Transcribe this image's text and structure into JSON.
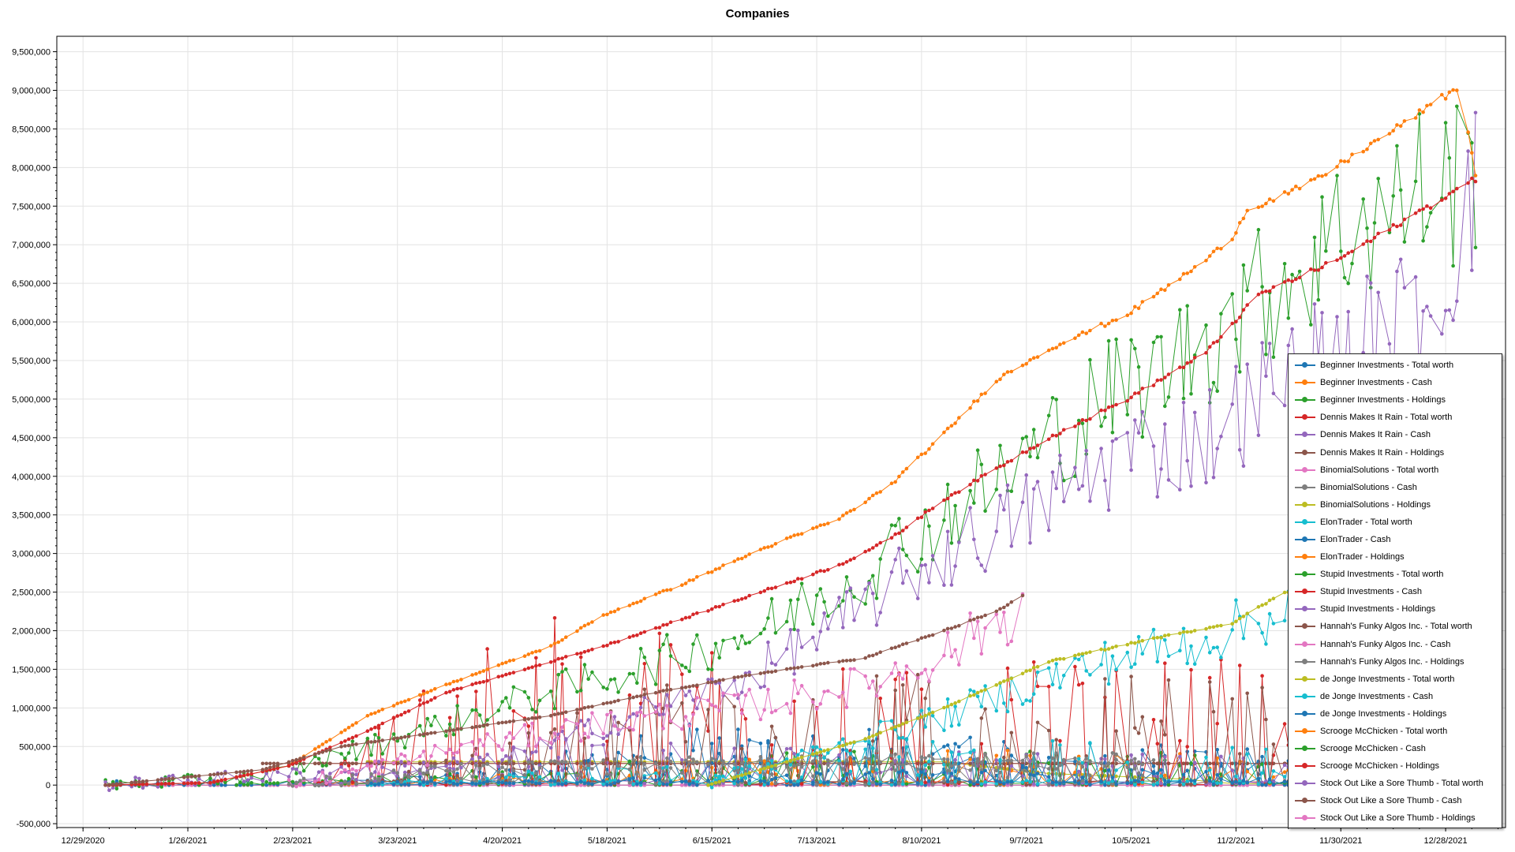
{
  "chart_data": {
    "type": "line",
    "title": "Companies",
    "xlabel": "",
    "ylabel": "",
    "x_ticks": [
      "12/29/2020",
      "1/26/2021",
      "2/23/2021",
      "3/23/2021",
      "4/20/2021",
      "5/18/2021",
      "6/15/2021",
      "7/13/2021",
      "8/10/2021",
      "9/7/2021",
      "10/5/2021",
      "11/2/2021",
      "11/30/2021",
      "12/28/2021"
    ],
    "y_ticks": [
      "-500,000",
      "0",
      "500,000",
      "1,000,000",
      "1,500,000",
      "2,000,000",
      "2,500,000",
      "3,000,000",
      "3,500,000",
      "4,000,000",
      "4,500,000",
      "5,000,000",
      "5,500,000",
      "6,000,000",
      "6,500,000",
      "7,000,000",
      "7,500,000",
      "8,000,000",
      "8,500,000",
      "9,000,000",
      "9,500,000"
    ],
    "x_range": [
      "2020-12-22",
      "2022-01-13"
    ],
    "ylim": [
      -550000,
      9700000
    ],
    "grid": true,
    "legend_position": "bottom-right",
    "series": [
      {
        "name": "Beginner Investments - Total worth",
        "color": "#1f77b4",
        "kind": "trade",
        "points": [
          [
            "2021-01-04",
            0
          ],
          [
            "2021-02-15",
            0
          ],
          [
            "2021-04-12",
            100000
          ],
          [
            "2021-06-07",
            500000
          ],
          [
            "2021-07-26",
            400000
          ],
          [
            "2021-09-06",
            350000
          ],
          [
            "2021-10-25",
            300000
          ],
          [
            "2021-12-20",
            300000
          ],
          [
            "2022-01-03",
            2450000
          ]
        ]
      },
      {
        "name": "Beginner Investments - Cash",
        "color": "#ff7f0e",
        "kind": "trend",
        "points": [
          [
            "2021-01-04",
            0
          ],
          [
            "2021-02-01",
            30000
          ],
          [
            "2021-02-22",
            250000
          ],
          [
            "2021-03-15",
            900000
          ],
          [
            "2021-04-05",
            1300000
          ],
          [
            "2021-04-19",
            1550000
          ],
          [
            "2021-05-03",
            1800000
          ],
          [
            "2021-05-17",
            2200000
          ],
          [
            "2021-06-07",
            2600000
          ],
          [
            "2021-06-28",
            3050000
          ],
          [
            "2021-07-19",
            3450000
          ],
          [
            "2021-08-02",
            3900000
          ],
          [
            "2021-08-16",
            4550000
          ],
          [
            "2021-08-30",
            5250000
          ],
          [
            "2021-09-13",
            5650000
          ],
          [
            "2021-10-04",
            6100000
          ],
          [
            "2021-10-25",
            6800000
          ],
          [
            "2021-11-01",
            7100000
          ],
          [
            "2021-11-05",
            7450000
          ],
          [
            "2021-11-22",
            7800000
          ],
          [
            "2021-12-13",
            8450000
          ],
          [
            "2021-12-27",
            8900000
          ],
          [
            "2022-01-01",
            9050000
          ],
          [
            "2022-01-05",
            7900000
          ]
        ]
      },
      {
        "name": "Beginner Investments - Holdings",
        "color": "#2ca02c",
        "kind": "volatile",
        "points": [
          [
            "2021-01-04",
            0
          ],
          [
            "2021-02-15",
            100000
          ],
          [
            "2021-03-15",
            500000
          ],
          [
            "2021-04-19",
            1000000
          ],
          [
            "2021-05-24",
            1500000
          ],
          [
            "2021-06-28",
            2000000
          ],
          [
            "2021-07-26",
            2800000
          ],
          [
            "2021-08-16",
            3500000
          ],
          [
            "2021-09-06",
            4200000
          ],
          [
            "2021-09-27",
            5000000
          ],
          [
            "2021-10-18",
            5500000
          ],
          [
            "2021-11-08",
            6300000
          ],
          [
            "2021-11-29",
            7100000
          ],
          [
            "2021-12-20",
            7700000
          ],
          [
            "2022-01-05",
            7900000
          ]
        ]
      },
      {
        "name": "Dennis Makes It Rain - Total worth",
        "color": "#d62728",
        "kind": "trend",
        "points": [
          [
            "2021-01-04",
            0
          ],
          [
            "2021-02-01",
            30000
          ],
          [
            "2021-02-22",
            250000
          ],
          [
            "2021-03-15",
            700000
          ],
          [
            "2021-04-05",
            1200000
          ],
          [
            "2021-04-26",
            1500000
          ],
          [
            "2021-05-17",
            1800000
          ],
          [
            "2021-06-07",
            2150000
          ],
          [
            "2021-06-28",
            2500000
          ],
          [
            "2021-07-19",
            2850000
          ],
          [
            "2021-08-02",
            3200000
          ],
          [
            "2021-08-16",
            3700000
          ],
          [
            "2021-08-30",
            4100000
          ],
          [
            "2021-09-13",
            4500000
          ],
          [
            "2021-10-04",
            5000000
          ],
          [
            "2021-10-25",
            5600000
          ],
          [
            "2021-11-08",
            6350000
          ],
          [
            "2021-11-29",
            6800000
          ],
          [
            "2021-12-20",
            7400000
          ],
          [
            "2022-01-05",
            7850000
          ]
        ]
      },
      {
        "name": "Dennis Makes It Rain - Cash",
        "color": "#9467bd",
        "kind": "volatile",
        "points": [
          [
            "2021-01-04",
            0
          ],
          [
            "2021-04-19",
            300000
          ],
          [
            "2021-05-24",
            900000
          ],
          [
            "2021-06-21",
            1300000
          ],
          [
            "2021-07-19",
            2100000
          ],
          [
            "2021-08-09",
            2800000
          ],
          [
            "2021-09-06",
            3500000
          ],
          [
            "2021-10-04",
            4300000
          ],
          [
            "2021-10-25",
            4500000
          ],
          [
            "2021-11-15",
            5300000
          ],
          [
            "2021-12-13",
            5900000
          ],
          [
            "2021-12-27",
            6400000
          ],
          [
            "2022-01-05",
            7850000
          ]
        ]
      },
      {
        "name": "Dennis Makes It Rain - Holdings",
        "color": "#8c564b",
        "kind": "trend",
        "points": [
          [
            "2021-01-04",
            0
          ],
          [
            "2021-02-15",
            200000
          ],
          [
            "2021-03-08",
            500000
          ],
          [
            "2021-04-05",
            700000
          ],
          [
            "2021-05-03",
            900000
          ],
          [
            "2021-05-31",
            1200000
          ],
          [
            "2021-06-28",
            1450000
          ],
          [
            "2021-07-26",
            1650000
          ],
          [
            "2021-08-16",
            2000000
          ],
          [
            "2021-08-30",
            2250000
          ],
          [
            "2021-09-06",
            2450000
          ]
        ]
      },
      {
        "name": "BinomialSolutions - Total worth",
        "color": "#e377c2",
        "kind": "volatile",
        "points": [
          [
            "2021-02-22",
            0
          ],
          [
            "2021-04-12",
            500000
          ],
          [
            "2021-05-17",
            800000
          ],
          [
            "2021-06-21",
            1000000
          ],
          [
            "2021-07-26",
            1300000
          ],
          [
            "2021-08-16",
            1700000
          ],
          [
            "2021-09-06",
            2300000
          ]
        ]
      },
      {
        "name": "BinomialSolutions - Cash",
        "color": "#7f7f7f",
        "kind": "volatile",
        "points": [
          [
            "2021-02-22",
            0
          ],
          [
            "2021-04-12",
            200000
          ],
          [
            "2021-07-19",
            300000
          ],
          [
            "2021-10-11",
            300000
          ]
        ]
      },
      {
        "name": "BinomialSolutions - Holdings",
        "color": "#bcbd22",
        "kind": "trend",
        "points": [
          [
            "2021-06-14",
            0
          ],
          [
            "2021-07-26",
            600000
          ],
          [
            "2021-08-16",
            1000000
          ],
          [
            "2021-09-13",
            1600000
          ],
          [
            "2021-10-11",
            1900000
          ],
          [
            "2021-11-01",
            2100000
          ],
          [
            "2021-11-15",
            2500000
          ],
          [
            "2021-12-13",
            2600000
          ]
        ]
      },
      {
        "name": "ElonTrader - Total worth",
        "color": "#17becf",
        "kind": "volatile",
        "points": [
          [
            "2021-06-14",
            0
          ],
          [
            "2021-08-16",
            900000
          ],
          [
            "2021-09-20",
            1500000
          ],
          [
            "2021-10-25",
            1900000
          ],
          [
            "2021-11-22",
            2400000
          ],
          [
            "2021-12-06",
            2500000
          ]
        ]
      },
      {
        "name": "ElonTrader - Cash",
        "color": "#1f77b4",
        "kind": "trade",
        "points": [
          [
            "2021-03-01",
            0
          ],
          [
            "2021-05-10",
            200000
          ],
          [
            "2021-07-12",
            500000
          ],
          [
            "2021-09-06",
            400000
          ],
          [
            "2021-11-01",
            300000
          ],
          [
            "2021-12-27",
            200000
          ]
        ]
      },
      {
        "name": "ElonTrader - Holdings",
        "color": "#ff7f0e",
        "kind": "trade",
        "points": [
          [
            "2021-03-01",
            0
          ],
          [
            "2021-06-01",
            200000
          ],
          [
            "2021-09-01",
            300000
          ],
          [
            "2021-12-20",
            200000
          ]
        ]
      },
      {
        "name": "Stupid Investments - Total worth",
        "color": "#2ca02c",
        "kind": "trade",
        "points": [
          [
            "2021-02-08",
            0
          ],
          [
            "2021-05-10",
            200000
          ],
          [
            "2021-08-09",
            300000
          ],
          [
            "2021-12-20",
            250000
          ]
        ]
      },
      {
        "name": "Stupid Investments - Cash",
        "color": "#d62728",
        "kind": "trade",
        "points": [
          [
            "2021-03-01",
            0
          ],
          [
            "2021-04-19",
            1500000
          ],
          [
            "2021-06-14",
            1200000
          ],
          [
            "2021-08-16",
            1000000
          ],
          [
            "2021-10-18",
            1000000
          ],
          [
            "2021-12-27",
            1100000
          ]
        ]
      },
      {
        "name": "Stupid Investments - Holdings",
        "color": "#9467bd",
        "kind": "trade",
        "points": [
          [
            "2021-03-01",
            0
          ],
          [
            "2021-05-10",
            400000
          ],
          [
            "2021-08-09",
            300000
          ],
          [
            "2021-12-20",
            200000
          ]
        ]
      },
      {
        "name": "Hannah's Funky Algos Inc. - Total worth",
        "color": "#8c564b",
        "kind": "trade",
        "points": [
          [
            "2021-03-15",
            0
          ],
          [
            "2021-06-07",
            900000
          ],
          [
            "2021-09-06",
            900000
          ],
          [
            "2021-12-27",
            900000
          ]
        ]
      },
      {
        "name": "Hannah's Funky Algos Inc. - Cash",
        "color": "#e377c2",
        "kind": "flat",
        "points": [
          [
            "2021-01-04",
            0
          ],
          [
            "2022-01-03",
            0
          ]
        ]
      },
      {
        "name": "Hannah's Funky Algos Inc. - Holdings",
        "color": "#7f7f7f",
        "kind": "trade",
        "points": [
          [
            "2021-03-15",
            0
          ],
          [
            "2021-07-19",
            300000
          ],
          [
            "2021-10-11",
            250000
          ]
        ]
      },
      {
        "name": "de Jonge Investments - Total worth",
        "color": "#bcbd22",
        "kind": "flat",
        "points": [
          [
            "2021-03-15",
            300000
          ],
          [
            "2021-08-16",
            300000
          ],
          [
            "2021-09-13",
            150000
          ],
          [
            "2021-10-18",
            80000
          ],
          [
            "2021-11-01",
            20000
          ],
          [
            "2021-12-27",
            0
          ]
        ]
      },
      {
        "name": "de Jonge Investments - Cash",
        "color": "#17becf",
        "kind": "trade",
        "points": [
          [
            "2021-03-15",
            0
          ],
          [
            "2021-08-16",
            400000
          ],
          [
            "2021-11-15",
            300000
          ]
        ]
      },
      {
        "name": "de Jonge Investments - Holdings",
        "color": "#1f77b4",
        "kind": "trade",
        "points": [
          [
            "2021-03-15",
            0
          ],
          [
            "2021-09-06",
            150000
          ],
          [
            "2021-12-27",
            100000
          ]
        ]
      },
      {
        "name": "Scrooge McChicken - Total worth",
        "color": "#ff7f0e",
        "kind": "flat",
        "points": [
          [
            "2021-01-04",
            0
          ],
          [
            "2022-01-03",
            0
          ]
        ]
      },
      {
        "name": "Scrooge McChicken - Cash",
        "color": "#2ca02c",
        "kind": "flat",
        "points": [
          [
            "2021-01-04",
            0
          ],
          [
            "2022-01-03",
            0
          ]
        ]
      },
      {
        "name": "Scrooge McChicken - Holdings",
        "color": "#d62728",
        "kind": "flat",
        "points": [
          [
            "2021-03-01",
            280000
          ],
          [
            "2022-01-03",
            280000
          ]
        ]
      },
      {
        "name": "Stock Out Like a Sore Thumb - Total worth",
        "color": "#9467bd",
        "kind": "flat",
        "points": [
          [
            "2021-01-04",
            0
          ],
          [
            "2022-01-03",
            0
          ]
        ]
      },
      {
        "name": "Stock Out Like a Sore Thumb - Cash",
        "color": "#8c564b",
        "kind": "flat",
        "points": [
          [
            "2021-02-15",
            280000
          ],
          [
            "2022-01-03",
            280000
          ]
        ]
      },
      {
        "name": "Stock Out Like a Sore Thumb - Holdings",
        "color": "#e377c2",
        "kind": "flat",
        "points": [
          [
            "2021-01-04",
            0
          ],
          [
            "2022-01-03",
            0
          ]
        ]
      }
    ]
  }
}
